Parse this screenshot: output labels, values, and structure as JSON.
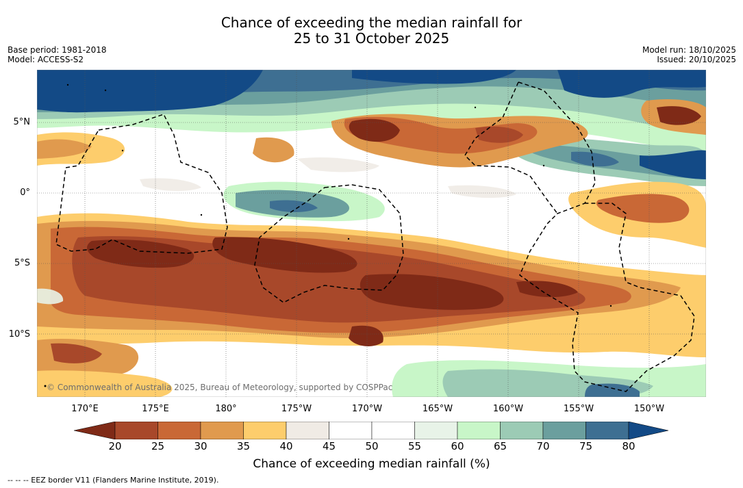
{
  "title": {
    "line1": "Chance of exceeding the median rainfall for",
    "line2": "25 to 31 October 2025"
  },
  "meta": {
    "base_period": "Base period: 1981-2018",
    "model": "Model: ACCESS-S2",
    "model_run": "Model run: 18/10/2025",
    "issued": "Issued: 20/10/2025"
  },
  "map": {
    "lat_labels": [
      "5°N",
      "0°",
      "5°S",
      "10°S"
    ],
    "lon_labels": [
      "170°E",
      "175°E",
      "180°",
      "175°W",
      "170°W",
      "165°W",
      "160°W",
      "155°W",
      "150°W"
    ],
    "credit": "© Commonwealth of Australia 2025, Bureau of Meteorology, supported by COSPPac",
    "colors": {
      "c20": "#7f2a17",
      "c25": "#a8482a",
      "c30": "#c96836",
      "c35": "#e09a4e",
      "c40": "#fdcd6c",
      "c45": "#f0ebe5",
      "c50": "#ffffff",
      "c60": "#e8f3e8",
      "c65": "#c8f6c8",
      "c70": "#9ccbb5",
      "c75": "#6b9f9e",
      "c80": "#3e6f92",
      "c85": "#134a86"
    }
  },
  "colorbar": {
    "ticks": [
      "20",
      "25",
      "30",
      "35",
      "40",
      "45",
      "50",
      "55",
      "60",
      "65",
      "70",
      "75",
      "80"
    ],
    "label": "Chance of exceeding median rainfall (%)"
  },
  "footnote": "--  --  -- EEZ border V11 (Flanders Marine Institute, 2019)."
}
